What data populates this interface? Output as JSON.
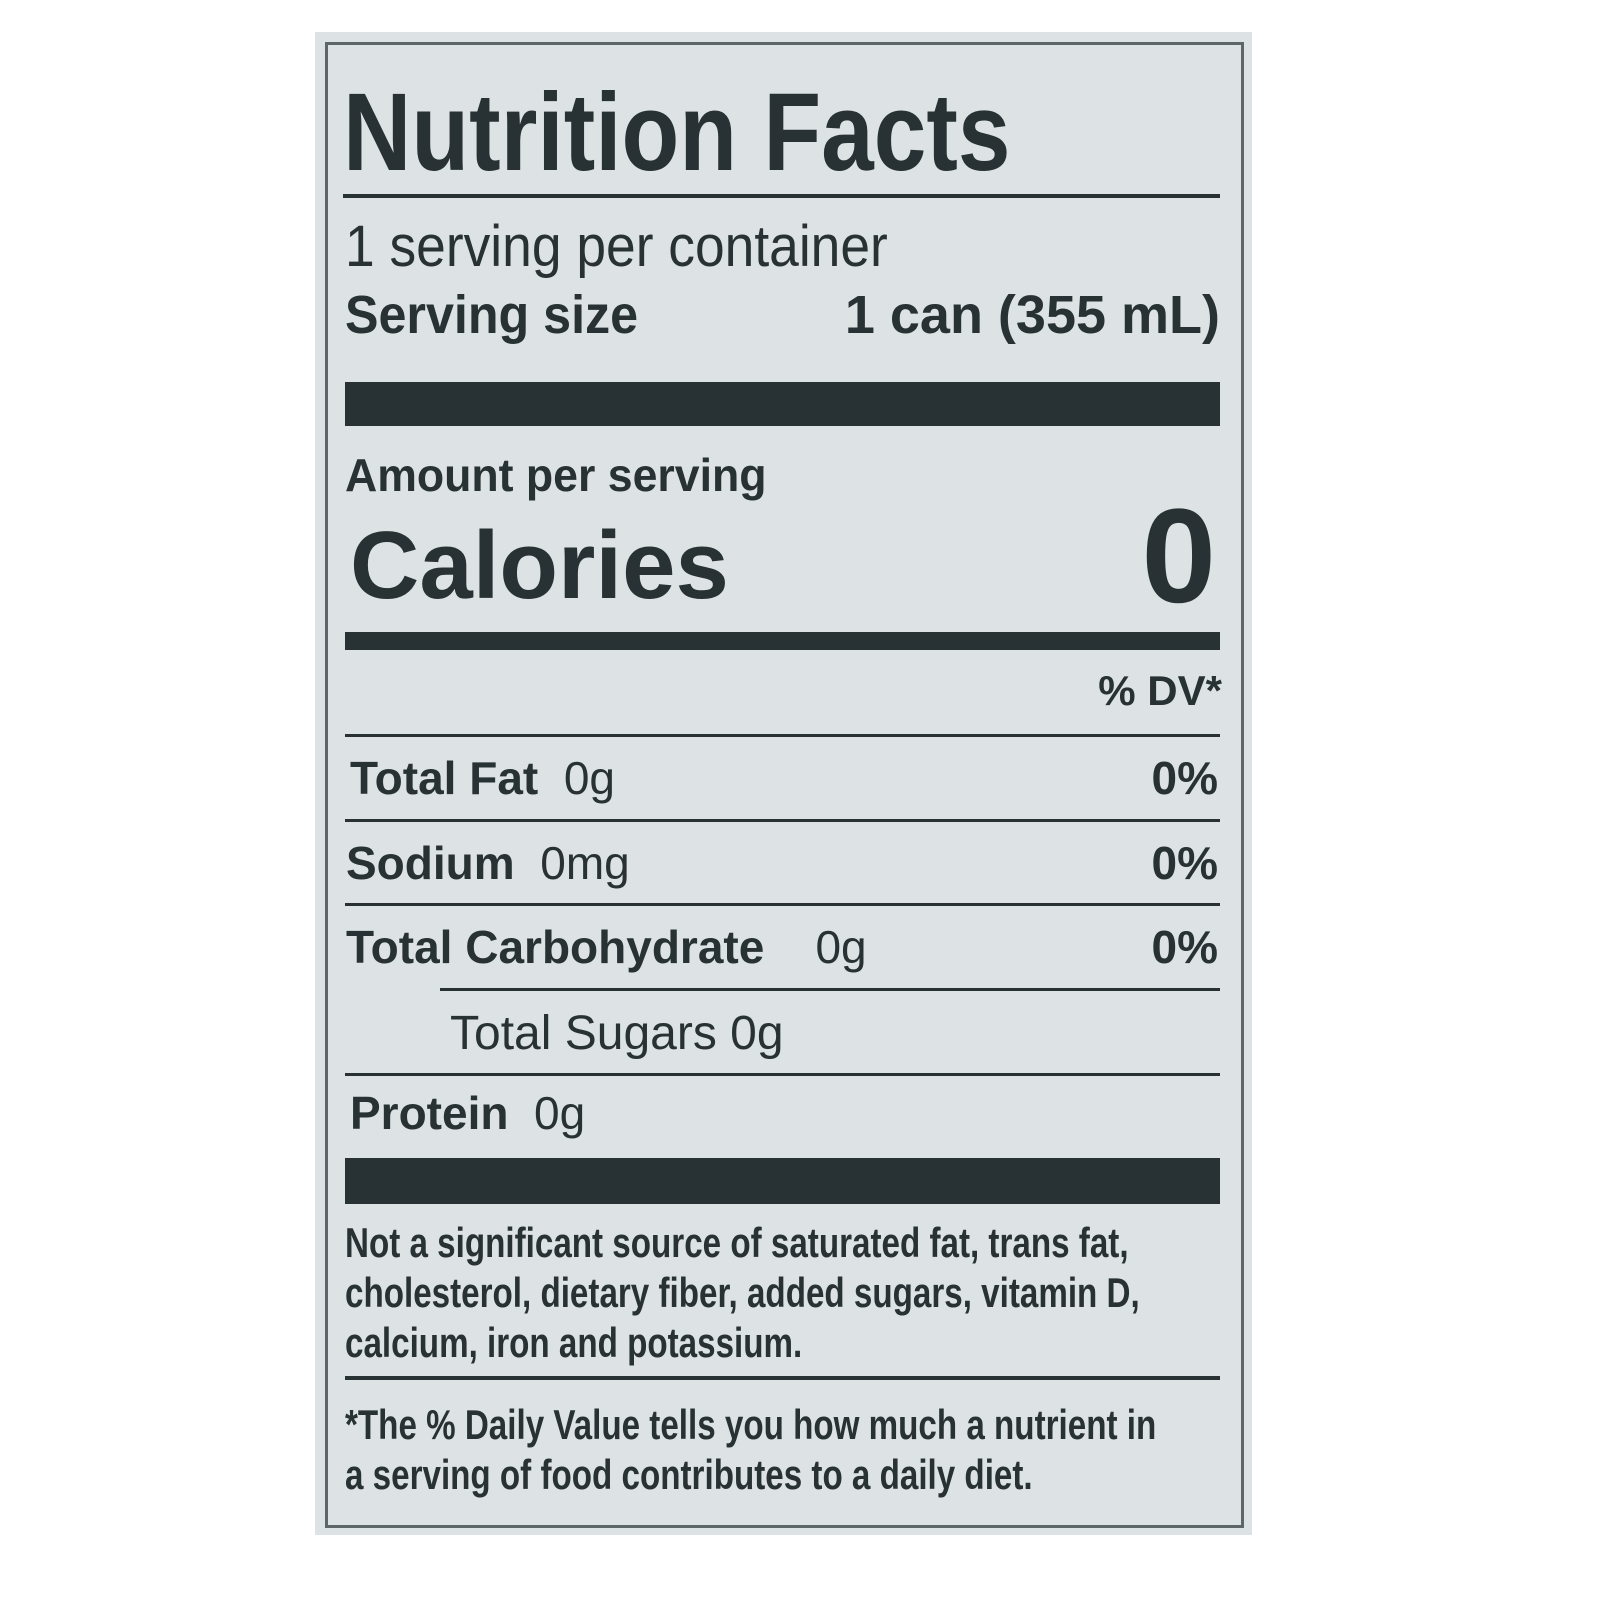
{
  "label": {
    "title": "Nutrition Facts",
    "servings_per_container": "1 serving per container",
    "serving_size_label": "Serving size",
    "serving_size_value": "1 can (355 mL)",
    "amount_per_serving": "Amount per serving",
    "calories_label": "Calories",
    "calories_value": "0",
    "dv_header": "% DV*",
    "nutrients": [
      {
        "name": "Total Fat",
        "amount": "0g",
        "dv": "0%"
      },
      {
        "name": "Sodium",
        "amount": "0mg",
        "dv": "0%"
      },
      {
        "name": "Total Carbohydrate",
        "amount": "0g",
        "dv": "0%"
      },
      {
        "name": "Total Sugars 0g"
      },
      {
        "name": "Protein",
        "amount": "0g"
      }
    ],
    "footnote_lines": [
      "Not a significant source of saturated fat, trans fat,",
      "cholesterol, dietary fiber, added sugars, vitamin D,",
      "calcium, iron and potassium."
    ],
    "dv_note_lines": [
      "*The % Daily Value tells you how much a nutrient in",
      "a serving of food contributes to a daily diet."
    ]
  },
  "colors": {
    "panel": "#dde3e5",
    "ink": "#283234"
  }
}
